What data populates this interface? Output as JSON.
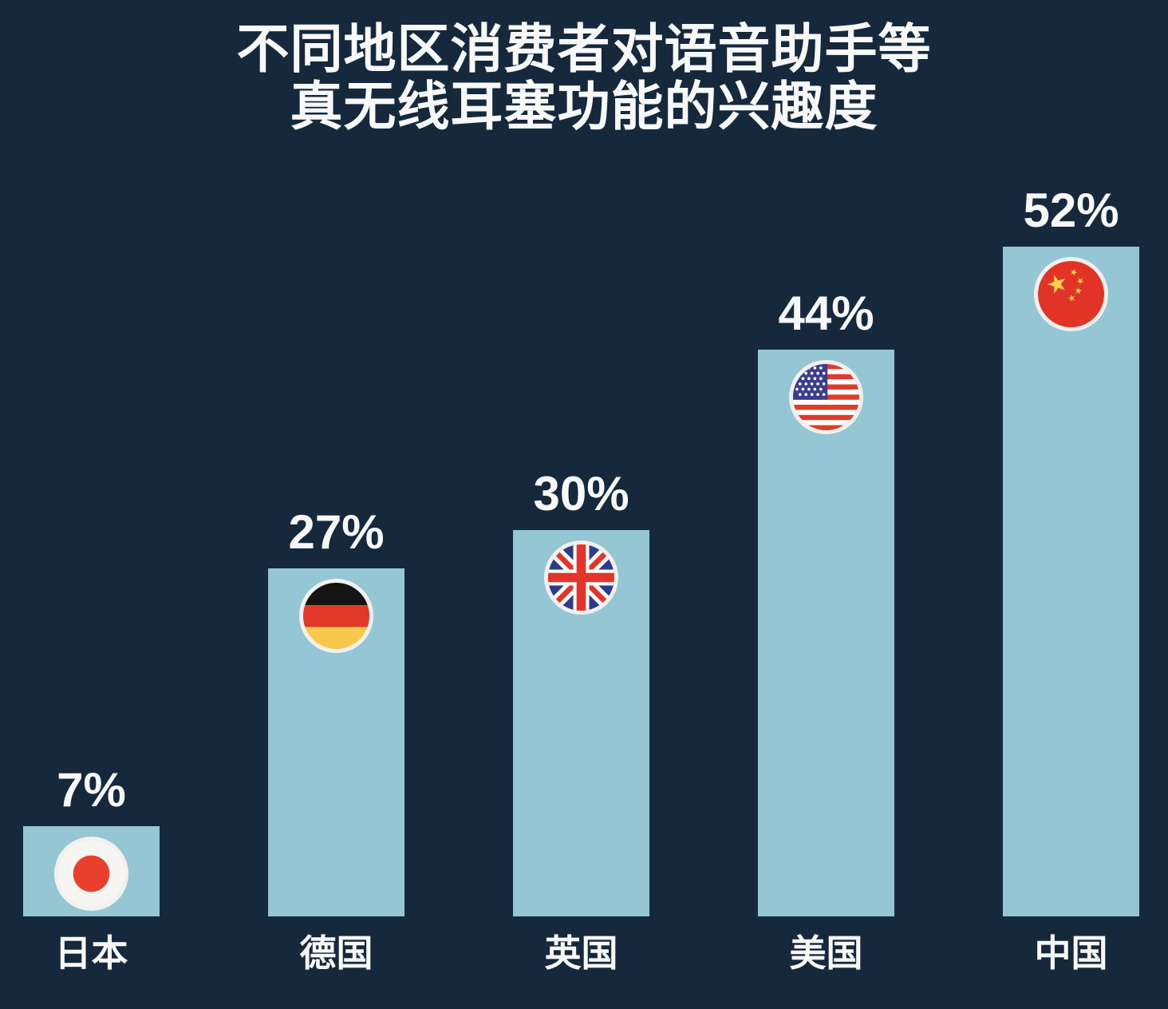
{
  "title": {
    "line1": "不同地区消费者对语音助手等",
    "line2": "真无线耳塞功能的兴趣度"
  },
  "colors": {
    "background": "#16293c",
    "bar": "#94c7d3",
    "text": "#f7f8f8",
    "flag_ring": "#f2f0ed"
  },
  "chart_data": {
    "type": "bar",
    "title": "不同地区消费者对语音助手等真无线耳塞功能的兴趣度",
    "categories": [
      "日本",
      "德国",
      "英国",
      "美国",
      "中国"
    ],
    "values": [
      7,
      27,
      30,
      44,
      52
    ],
    "value_labels": [
      "7%",
      "27%",
      "30%",
      "44%",
      "52%"
    ],
    "flag_icons": [
      "japan-flag",
      "germany-flag",
      "uk-flag",
      "usa-flag",
      "china-flag"
    ],
    "xlabel": "",
    "ylabel": "",
    "unit": "percent",
    "ylim": [
      0,
      60
    ],
    "grid": false,
    "axes_visible": false,
    "legend": "none"
  }
}
